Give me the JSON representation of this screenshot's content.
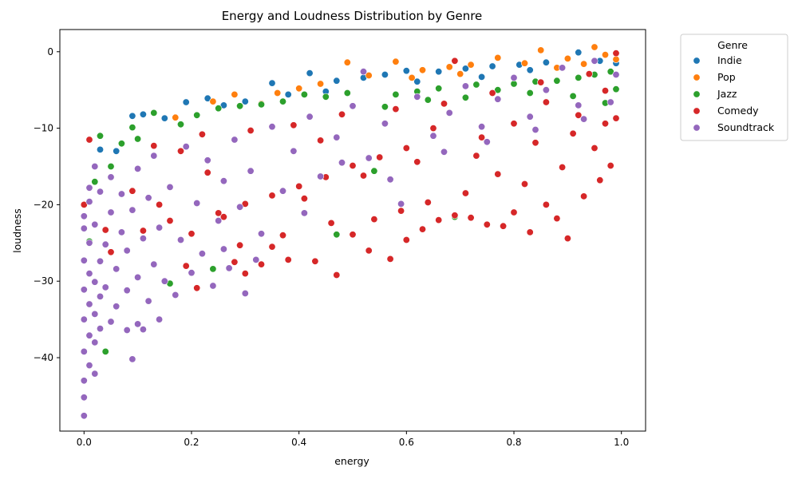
{
  "chart_data": {
    "type": "scatter",
    "title": "Energy and Loudness Distribution by Genre",
    "xlabel": "energy",
    "ylabel": "loudness",
    "xlim": [
      -0.045,
      1.045
    ],
    "ylim": [
      -49.6,
      2.9
    ],
    "xticks": [
      0.0,
      0.2,
      0.4,
      0.6,
      0.8,
      1.0
    ],
    "xtick_labels": [
      "0.0",
      "0.2",
      "0.4",
      "0.6",
      "0.8",
      "1.0"
    ],
    "yticks": [
      0,
      -10,
      -20,
      -30,
      -40
    ],
    "ytick_labels": [
      "0",
      "−10",
      "−20",
      "−30",
      "−40"
    ],
    "grid": false,
    "legend": {
      "title": "Genre",
      "placement": "outside-top-right"
    },
    "series": [
      {
        "name": "Indie",
        "color": "#1f77b4",
        "points": [
          [
            0.03,
            -12.8
          ],
          [
            0.06,
            -13.0
          ],
          [
            0.09,
            -8.4
          ],
          [
            0.11,
            -8.2
          ],
          [
            0.15,
            -8.7
          ],
          [
            0.19,
            -6.6
          ],
          [
            0.23,
            -6.1
          ],
          [
            0.26,
            -7.0
          ],
          [
            0.3,
            -6.5
          ],
          [
            0.35,
            -4.1
          ],
          [
            0.38,
            -5.6
          ],
          [
            0.42,
            -2.8
          ],
          [
            0.47,
            -3.8
          ],
          [
            0.52,
            -3.4
          ],
          [
            0.56,
            -3.0
          ],
          [
            0.6,
            -2.5
          ],
          [
            0.66,
            -2.6
          ],
          [
            0.71,
            -2.2
          ],
          [
            0.76,
            -1.9
          ],
          [
            0.81,
            -1.7
          ],
          [
            0.86,
            -1.4
          ],
          [
            0.92,
            -0.1
          ],
          [
            0.96,
            -1.2
          ],
          [
            0.99,
            -1.5
          ],
          [
            0.45,
            -5.2
          ],
          [
            0.62,
            -3.9
          ],
          [
            0.83,
            -2.4
          ],
          [
            0.74,
            -3.3
          ]
        ]
      },
      {
        "name": "Pop",
        "color": "#ff7f0e",
        "points": [
          [
            0.17,
            -8.6
          ],
          [
            0.24,
            -6.5
          ],
          [
            0.28,
            -5.6
          ],
          [
            0.33,
            -6.8
          ],
          [
            0.4,
            -4.8
          ],
          [
            0.44,
            -4.2
          ],
          [
            0.49,
            -1.4
          ],
          [
            0.53,
            -3.1
          ],
          [
            0.58,
            -1.3
          ],
          [
            0.63,
            -2.4
          ],
          [
            0.68,
            -2.0
          ],
          [
            0.72,
            -1.7
          ],
          [
            0.77,
            -0.8
          ],
          [
            0.82,
            -1.5
          ],
          [
            0.85,
            0.2
          ],
          [
            0.9,
            -0.9
          ],
          [
            0.95,
            0.6
          ],
          [
            0.97,
            -0.4
          ],
          [
            0.99,
            -1.0
          ],
          [
            0.61,
            -3.4
          ],
          [
            0.7,
            -2.9
          ],
          [
            0.88,
            -2.1
          ],
          [
            0.36,
            -5.4
          ],
          [
            0.93,
            -1.6
          ]
        ]
      },
      {
        "name": "Jazz",
        "color": "#2ca02c",
        "points": [
          [
            0.01,
            -24.8
          ],
          [
            0.02,
            -17.0
          ],
          [
            0.03,
            -11.0
          ],
          [
            0.04,
            -39.2
          ],
          [
            0.05,
            -15.0
          ],
          [
            0.07,
            -12.0
          ],
          [
            0.09,
            -9.9
          ],
          [
            0.1,
            -11.4
          ],
          [
            0.13,
            -8.0
          ],
          [
            0.16,
            -30.3
          ],
          [
            0.18,
            -9.5
          ],
          [
            0.21,
            -8.3
          ],
          [
            0.25,
            -7.4
          ],
          [
            0.29,
            -7.1
          ],
          [
            0.33,
            -6.9
          ],
          [
            0.37,
            -6.5
          ],
          [
            0.41,
            -5.6
          ],
          [
            0.45,
            -5.9
          ],
          [
            0.49,
            -5.4
          ],
          [
            0.54,
            -15.6
          ],
          [
            0.58,
            -5.6
          ],
          [
            0.62,
            -5.2
          ],
          [
            0.66,
            -4.8
          ],
          [
            0.69,
            -21.6
          ],
          [
            0.73,
            -4.3
          ],
          [
            0.77,
            -5.0
          ],
          [
            0.8,
            -4.2
          ],
          [
            0.84,
            -3.9
          ],
          [
            0.88,
            -3.8
          ],
          [
            0.92,
            -3.4
          ],
          [
            0.95,
            -3.0
          ],
          [
            0.98,
            -2.6
          ],
          [
            0.99,
            -4.9
          ],
          [
            0.24,
            -28.4
          ],
          [
            0.47,
            -23.9
          ],
          [
            0.56,
            -7.2
          ],
          [
            0.64,
            -6.3
          ],
          [
            0.71,
            -6.0
          ],
          [
            0.83,
            -5.4
          ],
          [
            0.91,
            -5.8
          ],
          [
            0.97,
            -6.7
          ]
        ]
      },
      {
        "name": "Comedy",
        "color": "#d62728",
        "points": [
          [
            0.0,
            -20.0
          ],
          [
            0.01,
            -11.5
          ],
          [
            0.04,
            -23.3
          ],
          [
            0.05,
            -26.2
          ],
          [
            0.09,
            -18.2
          ],
          [
            0.11,
            -23.4
          ],
          [
            0.14,
            -20.0
          ],
          [
            0.16,
            -22.1
          ],
          [
            0.19,
            -28.0
          ],
          [
            0.21,
            -30.9
          ],
          [
            0.23,
            -15.8
          ],
          [
            0.26,
            -21.6
          ],
          [
            0.28,
            -27.5
          ],
          [
            0.3,
            -29.0
          ],
          [
            0.33,
            -27.8
          ],
          [
            0.35,
            -25.5
          ],
          [
            0.38,
            -27.2
          ],
          [
            0.41,
            -19.2
          ],
          [
            0.43,
            -27.4
          ],
          [
            0.47,
            -29.2
          ],
          [
            0.5,
            -23.9
          ],
          [
            0.53,
            -26.0
          ],
          [
            0.57,
            -27.1
          ],
          [
            0.6,
            -24.6
          ],
          [
            0.63,
            -23.2
          ],
          [
            0.66,
            -22.0
          ],
          [
            0.69,
            -21.4
          ],
          [
            0.72,
            -21.7
          ],
          [
            0.75,
            -22.6
          ],
          [
            0.78,
            -22.8
          ],
          [
            0.8,
            -21.0
          ],
          [
            0.83,
            -23.6
          ],
          [
            0.86,
            -20.0
          ],
          [
            0.88,
            -21.8
          ],
          [
            0.9,
            -24.4
          ],
          [
            0.93,
            -18.9
          ],
          [
            0.96,
            -16.8
          ],
          [
            0.98,
            -14.9
          ],
          [
            0.99,
            -0.2
          ],
          [
            0.97,
            -5.1
          ],
          [
            0.92,
            -8.3
          ],
          [
            0.86,
            -6.6
          ],
          [
            0.8,
            -9.4
          ],
          [
            0.74,
            -11.2
          ],
          [
            0.69,
            -1.2
          ],
          [
            0.65,
            -10.0
          ],
          [
            0.6,
            -12.6
          ],
          [
            0.55,
            -13.8
          ],
          [
            0.5,
            -14.9
          ],
          [
            0.45,
            -16.4
          ],
          [
            0.4,
            -17.6
          ],
          [
            0.35,
            -18.8
          ],
          [
            0.3,
            -19.9
          ],
          [
            0.25,
            -21.1
          ],
          [
            0.2,
            -23.8
          ],
          [
            0.18,
            -13.0
          ],
          [
            0.13,
            -12.3
          ],
          [
            0.22,
            -10.8
          ],
          [
            0.31,
            -10.3
          ],
          [
            0.39,
            -9.6
          ],
          [
            0.48,
            -8.2
          ],
          [
            0.58,
            -7.5
          ],
          [
            0.67,
            -6.8
          ],
          [
            0.76,
            -5.4
          ],
          [
            0.85,
            -4.0
          ],
          [
            0.94,
            -2.9
          ],
          [
            0.99,
            -8.7
          ],
          [
            0.95,
            -12.6
          ],
          [
            0.89,
            -15.1
          ],
          [
            0.82,
            -17.3
          ],
          [
            0.77,
            -16.0
          ],
          [
            0.71,
            -18.5
          ],
          [
            0.64,
            -19.7
          ],
          [
            0.59,
            -20.8
          ],
          [
            0.54,
            -21.9
          ],
          [
            0.46,
            -22.4
          ],
          [
            0.37,
            -24.0
          ],
          [
            0.29,
            -25.3
          ],
          [
            0.44,
            -11.6
          ],
          [
            0.52,
            -16.2
          ],
          [
            0.62,
            -14.4
          ],
          [
            0.73,
            -13.6
          ],
          [
            0.84,
            -11.9
          ],
          [
            0.91,
            -10.7
          ],
          [
            0.97,
            -9.4
          ]
        ]
      },
      {
        "name": "Soundtrack",
        "color": "#9467bd",
        "points": [
          [
            0.0,
            -47.6
          ],
          [
            0.0,
            -45.2
          ],
          [
            0.0,
            -43.0
          ],
          [
            0.01,
            -41.0
          ],
          [
            0.0,
            -39.2
          ],
          [
            0.01,
            -37.1
          ],
          [
            0.0,
            -35.0
          ],
          [
            0.01,
            -33.0
          ],
          [
            0.0,
            -31.1
          ],
          [
            0.01,
            -29.0
          ],
          [
            0.0,
            -27.3
          ],
          [
            0.01,
            -25.0
          ],
          [
            0.0,
            -23.1
          ],
          [
            0.0,
            -21.5
          ],
          [
            0.01,
            -19.6
          ],
          [
            0.01,
            -17.8
          ],
          [
            0.02,
            -42.1
          ],
          [
            0.02,
            -38.0
          ],
          [
            0.02,
            -34.3
          ],
          [
            0.02,
            -30.1
          ],
          [
            0.03,
            -36.2
          ],
          [
            0.03,
            -32.0
          ],
          [
            0.03,
            -27.4
          ],
          [
            0.02,
            -22.6
          ],
          [
            0.03,
            -18.3
          ],
          [
            0.02,
            -15.0
          ],
          [
            0.04,
            -30.8
          ],
          [
            0.04,
            -25.2
          ],
          [
            0.05,
            -35.3
          ],
          [
            0.05,
            -21.0
          ],
          [
            0.05,
            -16.4
          ],
          [
            0.06,
            -28.4
          ],
          [
            0.06,
            -33.3
          ],
          [
            0.07,
            -23.6
          ],
          [
            0.07,
            -18.6
          ],
          [
            0.08,
            -36.4
          ],
          [
            0.08,
            -31.2
          ],
          [
            0.08,
            -26.0
          ],
          [
            0.09,
            -40.2
          ],
          [
            0.09,
            -20.7
          ],
          [
            0.1,
            -35.6
          ],
          [
            0.1,
            -29.5
          ],
          [
            0.1,
            -15.3
          ],
          [
            0.11,
            -36.3
          ],
          [
            0.11,
            -24.4
          ],
          [
            0.12,
            -32.6
          ],
          [
            0.12,
            -19.1
          ],
          [
            0.13,
            -27.8
          ],
          [
            0.13,
            -13.6
          ],
          [
            0.14,
            -35.0
          ],
          [
            0.14,
            -23.0
          ],
          [
            0.15,
            -30.0
          ],
          [
            0.16,
            -17.7
          ],
          [
            0.17,
            -31.8
          ],
          [
            0.18,
            -24.6
          ],
          [
            0.19,
            -12.4
          ],
          [
            0.2,
            -28.9
          ],
          [
            0.21,
            -19.8
          ],
          [
            0.22,
            -26.4
          ],
          [
            0.23,
            -14.2
          ],
          [
            0.24,
            -30.6
          ],
          [
            0.25,
            -22.1
          ],
          [
            0.26,
            -16.9
          ],
          [
            0.27,
            -28.3
          ],
          [
            0.28,
            -11.5
          ],
          [
            0.29,
            -20.3
          ],
          [
            0.3,
            -31.6
          ],
          [
            0.31,
            -15.6
          ],
          [
            0.33,
            -23.8
          ],
          [
            0.35,
            -9.8
          ],
          [
            0.37,
            -18.2
          ],
          [
            0.39,
            -13.0
          ],
          [
            0.42,
            -8.5
          ],
          [
            0.44,
            -16.3
          ],
          [
            0.47,
            -11.2
          ],
          [
            0.5,
            -7.1
          ],
          [
            0.53,
            -13.9
          ],
          [
            0.56,
            -9.4
          ],
          [
            0.59,
            -19.9
          ],
          [
            0.62,
            -5.9
          ],
          [
            0.65,
            -11.0
          ],
          [
            0.68,
            -8.0
          ],
          [
            0.71,
            -4.5
          ],
          [
            0.74,
            -9.8
          ],
          [
            0.77,
            -6.2
          ],
          [
            0.8,
            -3.4
          ],
          [
            0.83,
            -8.5
          ],
          [
            0.86,
            -5.0
          ],
          [
            0.89,
            -2.1
          ],
          [
            0.92,
            -7.0
          ],
          [
            0.95,
            -1.2
          ],
          [
            0.98,
            -6.6
          ],
          [
            0.99,
            -3.0
          ],
          [
            0.52,
            -2.6
          ],
          [
            0.32,
            -27.2
          ],
          [
            0.26,
            -25.8
          ],
          [
            0.41,
            -21.1
          ],
          [
            0.48,
            -14.5
          ],
          [
            0.57,
            -16.7
          ],
          [
            0.67,
            -13.1
          ],
          [
            0.75,
            -11.8
          ],
          [
            0.84,
            -10.2
          ],
          [
            0.93,
            -8.8
          ]
        ]
      }
    ]
  }
}
